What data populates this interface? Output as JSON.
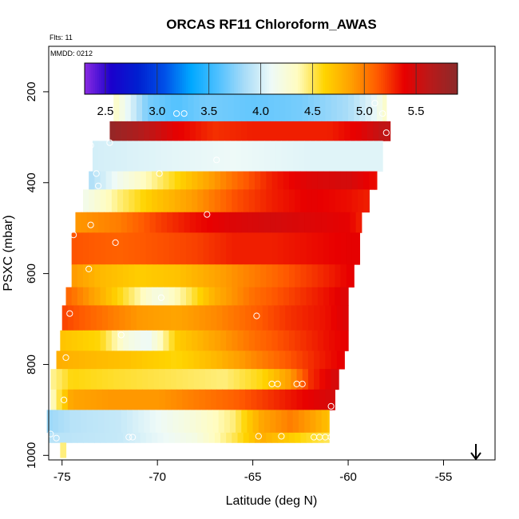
{
  "chart_data": {
    "type": "heatmap",
    "title": "ORCAS RF11 Chloroform_AWAS",
    "flights_note": "Flts: 11",
    "date_note": "MMDD: 0212",
    "xlabel": "Latitude (deg N)",
    "ylabel": "PSXC (mbar)",
    "xlim": [
      -75.7,
      -52.3
    ],
    "ylim": [
      1010,
      100
    ],
    "x_ticks": [
      -75,
      -70,
      -65,
      -60,
      -55
    ],
    "x_tick_labels": [
      "-75",
      "-70",
      "-65",
      "-60",
      "-55"
    ],
    "y_ticks": [
      200,
      400,
      600,
      800,
      1000
    ],
    "y_tick_labels": [
      "200",
      "400",
      "600",
      "800",
      "1000"
    ],
    "colorbar": {
      "min": 2.3,
      "max": 5.9,
      "ticks": [
        2.5,
        3.0,
        3.5,
        4.0,
        4.5,
        5.0,
        5.5
      ],
      "tick_labels": [
        "2.5",
        "3.0",
        "3.5",
        "4.0",
        "4.5",
        "5.0",
        "5.5"
      ],
      "colors": [
        "#8a2be2",
        "#1a00cc",
        "#0020d0",
        "#0050e8",
        "#00a8ff",
        "#4ec0ff",
        "#a8dcf8",
        "#eefaf8",
        "#fffcc0",
        "#ffd400",
        "#ffa000",
        "#ff5a00",
        "#e80000",
        "#b81a1a",
        "#8b2a2a"
      ]
    },
    "bands": [
      {
        "p": [
          175,
          200
        ],
        "lat": [
          -72.0,
          -56.7
        ],
        "stops": [
          [
            -72.0,
            4.8
          ],
          [
            -71.6,
            4.6
          ],
          [
            -70.8,
            4.15
          ],
          [
            -69.5,
            4.0
          ],
          [
            -67.5,
            4.25
          ],
          [
            -66.0,
            4.4
          ],
          [
            -64.3,
            4.5
          ],
          [
            -63.5,
            3.6
          ],
          [
            -62.0,
            3.1
          ],
          [
            -60.8,
            2.7
          ],
          [
            -59.5,
            2.45
          ],
          [
            -58.5,
            2.9
          ],
          [
            -57.5,
            4.7
          ],
          [
            -56.8,
            5.0
          ]
        ]
      },
      {
        "p": [
          200,
          265
        ],
        "lat": [
          -72.3,
          -58.0
        ],
        "stops": [
          [
            -72.3,
            4.35
          ],
          [
            -70.5,
            3.7
          ],
          [
            -69.0,
            3.6
          ],
          [
            -67.5,
            3.7
          ],
          [
            -65.0,
            3.65
          ],
          [
            -62.5,
            3.7
          ],
          [
            -60.0,
            3.85
          ],
          [
            -58.5,
            4.1
          ],
          [
            -58.0,
            4.35
          ]
        ]
      },
      {
        "p": [
          265,
          308
        ],
        "lat": [
          -72.5,
          -57.8
        ],
        "stops": [
          [
            -72.5,
            5.85
          ],
          [
            -71.0,
            5.7
          ],
          [
            -69.0,
            5.4
          ],
          [
            -67.0,
            5.25
          ],
          [
            -65.0,
            5.3
          ],
          [
            -63.0,
            5.3
          ],
          [
            -61.0,
            5.3
          ],
          [
            -59.5,
            5.4
          ],
          [
            -58.2,
            5.6
          ]
        ]
      },
      {
        "p": [
          308,
          375
        ],
        "lat": [
          -73.4,
          -58.2
        ],
        "stops": [
          [
            -73.4,
            4.0
          ],
          [
            -70.0,
            4.05
          ],
          [
            -66.0,
            4.1
          ],
          [
            -62.0,
            4.05
          ],
          [
            -58.2,
            4.05
          ]
        ]
      },
      {
        "p": [
          375,
          415
        ],
        "lat": [
          -73.6,
          -58.5
        ],
        "stops": [
          [
            -73.6,
            3.85
          ],
          [
            -72.0,
            4.15
          ],
          [
            -70.0,
            4.45
          ],
          [
            -68.0,
            4.75
          ],
          [
            -66.0,
            5.05
          ],
          [
            -64.0,
            5.3
          ],
          [
            -62.0,
            5.45
          ],
          [
            -60.0,
            5.5
          ],
          [
            -58.6,
            5.35
          ]
        ]
      },
      {
        "p": [
          415,
          465
        ],
        "lat": [
          -73.9,
          -58.9
        ],
        "stops": [
          [
            -73.9,
            4.15
          ],
          [
            -72.0,
            4.45
          ],
          [
            -70.0,
            4.7
          ],
          [
            -68.0,
            4.9
          ],
          [
            -66.0,
            5.15
          ],
          [
            -64.0,
            5.3
          ],
          [
            -62.0,
            5.4
          ],
          [
            -60.0,
            5.35
          ],
          [
            -59.0,
            5.3
          ]
        ]
      },
      {
        "p": [
          465,
          510
        ],
        "lat": [
          -74.3,
          -59.3
        ],
        "stops": [
          [
            -74.3,
            4.9
          ],
          [
            -72.0,
            5.0
          ],
          [
            -70.0,
            5.2
          ],
          [
            -68.0,
            5.35
          ],
          [
            -66.0,
            5.45
          ],
          [
            -64.0,
            5.5
          ],
          [
            -62.0,
            5.45
          ],
          [
            -60.0,
            5.4
          ],
          [
            -59.4,
            5.3
          ]
        ]
      },
      {
        "p": [
          510,
          580
        ],
        "lat": [
          -74.5,
          -59.4
        ],
        "stops": [
          [
            -74.5,
            5.15
          ],
          [
            -72.0,
            5.1
          ],
          [
            -70.0,
            5.15
          ],
          [
            -68.0,
            5.2
          ],
          [
            -66.0,
            5.3
          ],
          [
            -64.0,
            5.3
          ],
          [
            -62.0,
            5.35
          ],
          [
            -60.0,
            5.4
          ],
          [
            -59.5,
            5.4
          ]
        ]
      },
      {
        "p": [
          580,
          630
        ],
        "lat": [
          -74.5,
          -59.7
        ],
        "stops": [
          [
            -74.5,
            4.9
          ],
          [
            -73.0,
            4.75
          ],
          [
            -71.0,
            4.65
          ],
          [
            -69.0,
            4.7
          ],
          [
            -67.0,
            4.85
          ],
          [
            -65.0,
            5.0
          ],
          [
            -63.0,
            5.15
          ],
          [
            -61.0,
            5.3
          ],
          [
            -59.8,
            5.4
          ]
        ]
      },
      {
        "p": [
          630,
          670
        ],
        "lat": [
          -74.8,
          -60.0
        ],
        "stops": [
          [
            -74.8,
            5.1
          ],
          [
            -73.0,
            4.8
          ],
          [
            -71.5,
            4.5
          ],
          [
            -70.0,
            4.2
          ],
          [
            -68.5,
            4.45
          ],
          [
            -67.0,
            4.8
          ],
          [
            -65.0,
            5.05
          ],
          [
            -63.0,
            5.2
          ],
          [
            -61.0,
            5.35
          ],
          [
            -60.1,
            5.45
          ]
        ]
      },
      {
        "p": [
          670,
          725
        ],
        "lat": [
          -75.0,
          -60.0
        ],
        "stops": [
          [
            -75.0,
            5.2
          ],
          [
            -73.0,
            5.05
          ],
          [
            -71.0,
            4.9
          ],
          [
            -69.0,
            4.85
          ],
          [
            -67.0,
            4.95
          ],
          [
            -65.0,
            5.1
          ],
          [
            -63.0,
            5.25
          ],
          [
            -61.0,
            5.35
          ],
          [
            -60.1,
            5.45
          ]
        ]
      },
      {
        "p": [
          725,
          770
        ],
        "lat": [
          -75.1,
          -60.0
        ],
        "stops": [
          [
            -75.1,
            4.7
          ],
          [
            -73.0,
            4.6
          ],
          [
            -71.5,
            4.2
          ],
          [
            -70.5,
            4.1
          ],
          [
            -69.0,
            4.65
          ],
          [
            -67.0,
            4.85
          ],
          [
            -65.0,
            5.05
          ],
          [
            -63.0,
            5.2
          ],
          [
            -61.0,
            5.35
          ],
          [
            -60.1,
            5.4
          ]
        ]
      },
      {
        "p": [
          770,
          810
        ],
        "lat": [
          -75.3,
          -60.2
        ],
        "stops": [
          [
            -75.3,
            4.8
          ],
          [
            -73.5,
            4.75
          ],
          [
            -71.5,
            4.7
          ],
          [
            -69.0,
            4.6
          ],
          [
            -67.0,
            4.75
          ],
          [
            -65.0,
            4.95
          ],
          [
            -63.0,
            5.15
          ],
          [
            -61.5,
            5.3
          ],
          [
            -60.3,
            5.4
          ]
        ]
      },
      {
        "p": [
          810,
          855
        ],
        "lat": [
          -75.6,
          -60.5
        ],
        "stops": [
          [
            -75.6,
            4.4
          ],
          [
            -74.5,
            4.6
          ],
          [
            -72.0,
            4.55
          ],
          [
            -69.0,
            4.5
          ],
          [
            -66.5,
            4.45
          ],
          [
            -64.5,
            4.6
          ],
          [
            -63.0,
            4.9
          ],
          [
            -62.0,
            5.25
          ],
          [
            -60.6,
            5.5
          ]
        ]
      },
      {
        "p": [
          855,
          900
        ],
        "lat": [
          -75.6,
          -60.7
        ],
        "stops": [
          [
            -75.6,
            4.3
          ],
          [
            -74.5,
            4.85
          ],
          [
            -72.5,
            4.9
          ],
          [
            -70.0,
            4.9
          ],
          [
            -68.0,
            5.0
          ],
          [
            -66.0,
            5.1
          ],
          [
            -64.0,
            5.25
          ],
          [
            -62.0,
            5.4
          ],
          [
            -60.8,
            5.5
          ]
        ]
      },
      {
        "p": [
          900,
          950
        ],
        "lat": [
          -75.8,
          -61.0
        ],
        "stops": [
          [
            -75.8,
            3.8
          ],
          [
            -74.5,
            3.9
          ],
          [
            -72.0,
            3.95
          ],
          [
            -70.0,
            4.1
          ],
          [
            -68.0,
            4.25
          ],
          [
            -66.0,
            4.45
          ],
          [
            -64.5,
            4.85
          ],
          [
            -63.0,
            5.0
          ],
          [
            -61.8,
            4.85
          ],
          [
            -61.0,
            4.7
          ]
        ]
      },
      {
        "p": [
          950,
          972
        ],
        "lat": [
          -75.7,
          -61.0
        ],
        "stops": [
          [
            -75.7,
            3.9
          ],
          [
            -72.0,
            3.95
          ],
          [
            -68.0,
            4.2
          ],
          [
            -66.0,
            4.5
          ],
          [
            -64.5,
            4.8
          ],
          [
            -62.5,
            4.6
          ],
          [
            -61.1,
            4.5
          ]
        ]
      },
      {
        "p": [
          972,
          1005
        ],
        "lat": [
          -75.1,
          -74.8
        ],
        "stops": [
          [
            -75.1,
            4.45
          ],
          [
            -74.8,
            4.45
          ]
        ]
      }
    ],
    "samples": [
      {
        "lat": -71.5,
        "p": 183
      },
      {
        "lat": -70.2,
        "p": 183
      },
      {
        "lat": -59.4,
        "p": 187
      },
      {
        "lat": -59.1,
        "p": 187
      },
      {
        "lat": -57.6,
        "p": 190
      },
      {
        "lat": -57.3,
        "p": 190
      },
      {
        "lat": -56.9,
        "p": 188
      },
      {
        "lat": -69.0,
        "p": 248
      },
      {
        "lat": -68.6,
        "p": 248
      },
      {
        "lat": -58.6,
        "p": 225
      },
      {
        "lat": -58.2,
        "p": 248
      },
      {
        "lat": -72.5,
        "p": 312
      },
      {
        "lat": -66.9,
        "p": 350
      },
      {
        "lat": -73.5,
        "p": 318
      },
      {
        "lat": -58.0,
        "p": 290
      },
      {
        "lat": -73.6,
        "p": 367
      },
      {
        "lat": -73.2,
        "p": 380
      },
      {
        "lat": -69.9,
        "p": 380
      },
      {
        "lat": -73.1,
        "p": 407
      },
      {
        "lat": -67.4,
        "p": 470
      },
      {
        "lat": -73.5,
        "p": 493
      },
      {
        "lat": -74.4,
        "p": 515
      },
      {
        "lat": -72.2,
        "p": 532
      },
      {
        "lat": -73.6,
        "p": 590
      },
      {
        "lat": -69.8,
        "p": 653
      },
      {
        "lat": -74.6,
        "p": 688
      },
      {
        "lat": -64.8,
        "p": 693
      },
      {
        "lat": -71.9,
        "p": 735
      },
      {
        "lat": -74.8,
        "p": 785
      },
      {
        "lat": -64.0,
        "p": 843
      },
      {
        "lat": -63.7,
        "p": 843
      },
      {
        "lat": -62.7,
        "p": 843
      },
      {
        "lat": -62.4,
        "p": 843
      },
      {
        "lat": -74.9,
        "p": 878
      },
      {
        "lat": -60.9,
        "p": 892
      },
      {
        "lat": -75.6,
        "p": 953
      },
      {
        "lat": -75.3,
        "p": 962
      },
      {
        "lat": -71.5,
        "p": 960
      },
      {
        "lat": -71.3,
        "p": 960
      },
      {
        "lat": -64.7,
        "p": 958
      },
      {
        "lat": -63.5,
        "p": 958
      },
      {
        "lat": -61.8,
        "p": 960
      },
      {
        "lat": -61.5,
        "p": 960
      },
      {
        "lat": -61.2,
        "p": 960
      },
      {
        "lat": -60.9,
        "p": 960
      },
      {
        "lat": -60.7,
        "p": 958
      }
    ]
  }
}
